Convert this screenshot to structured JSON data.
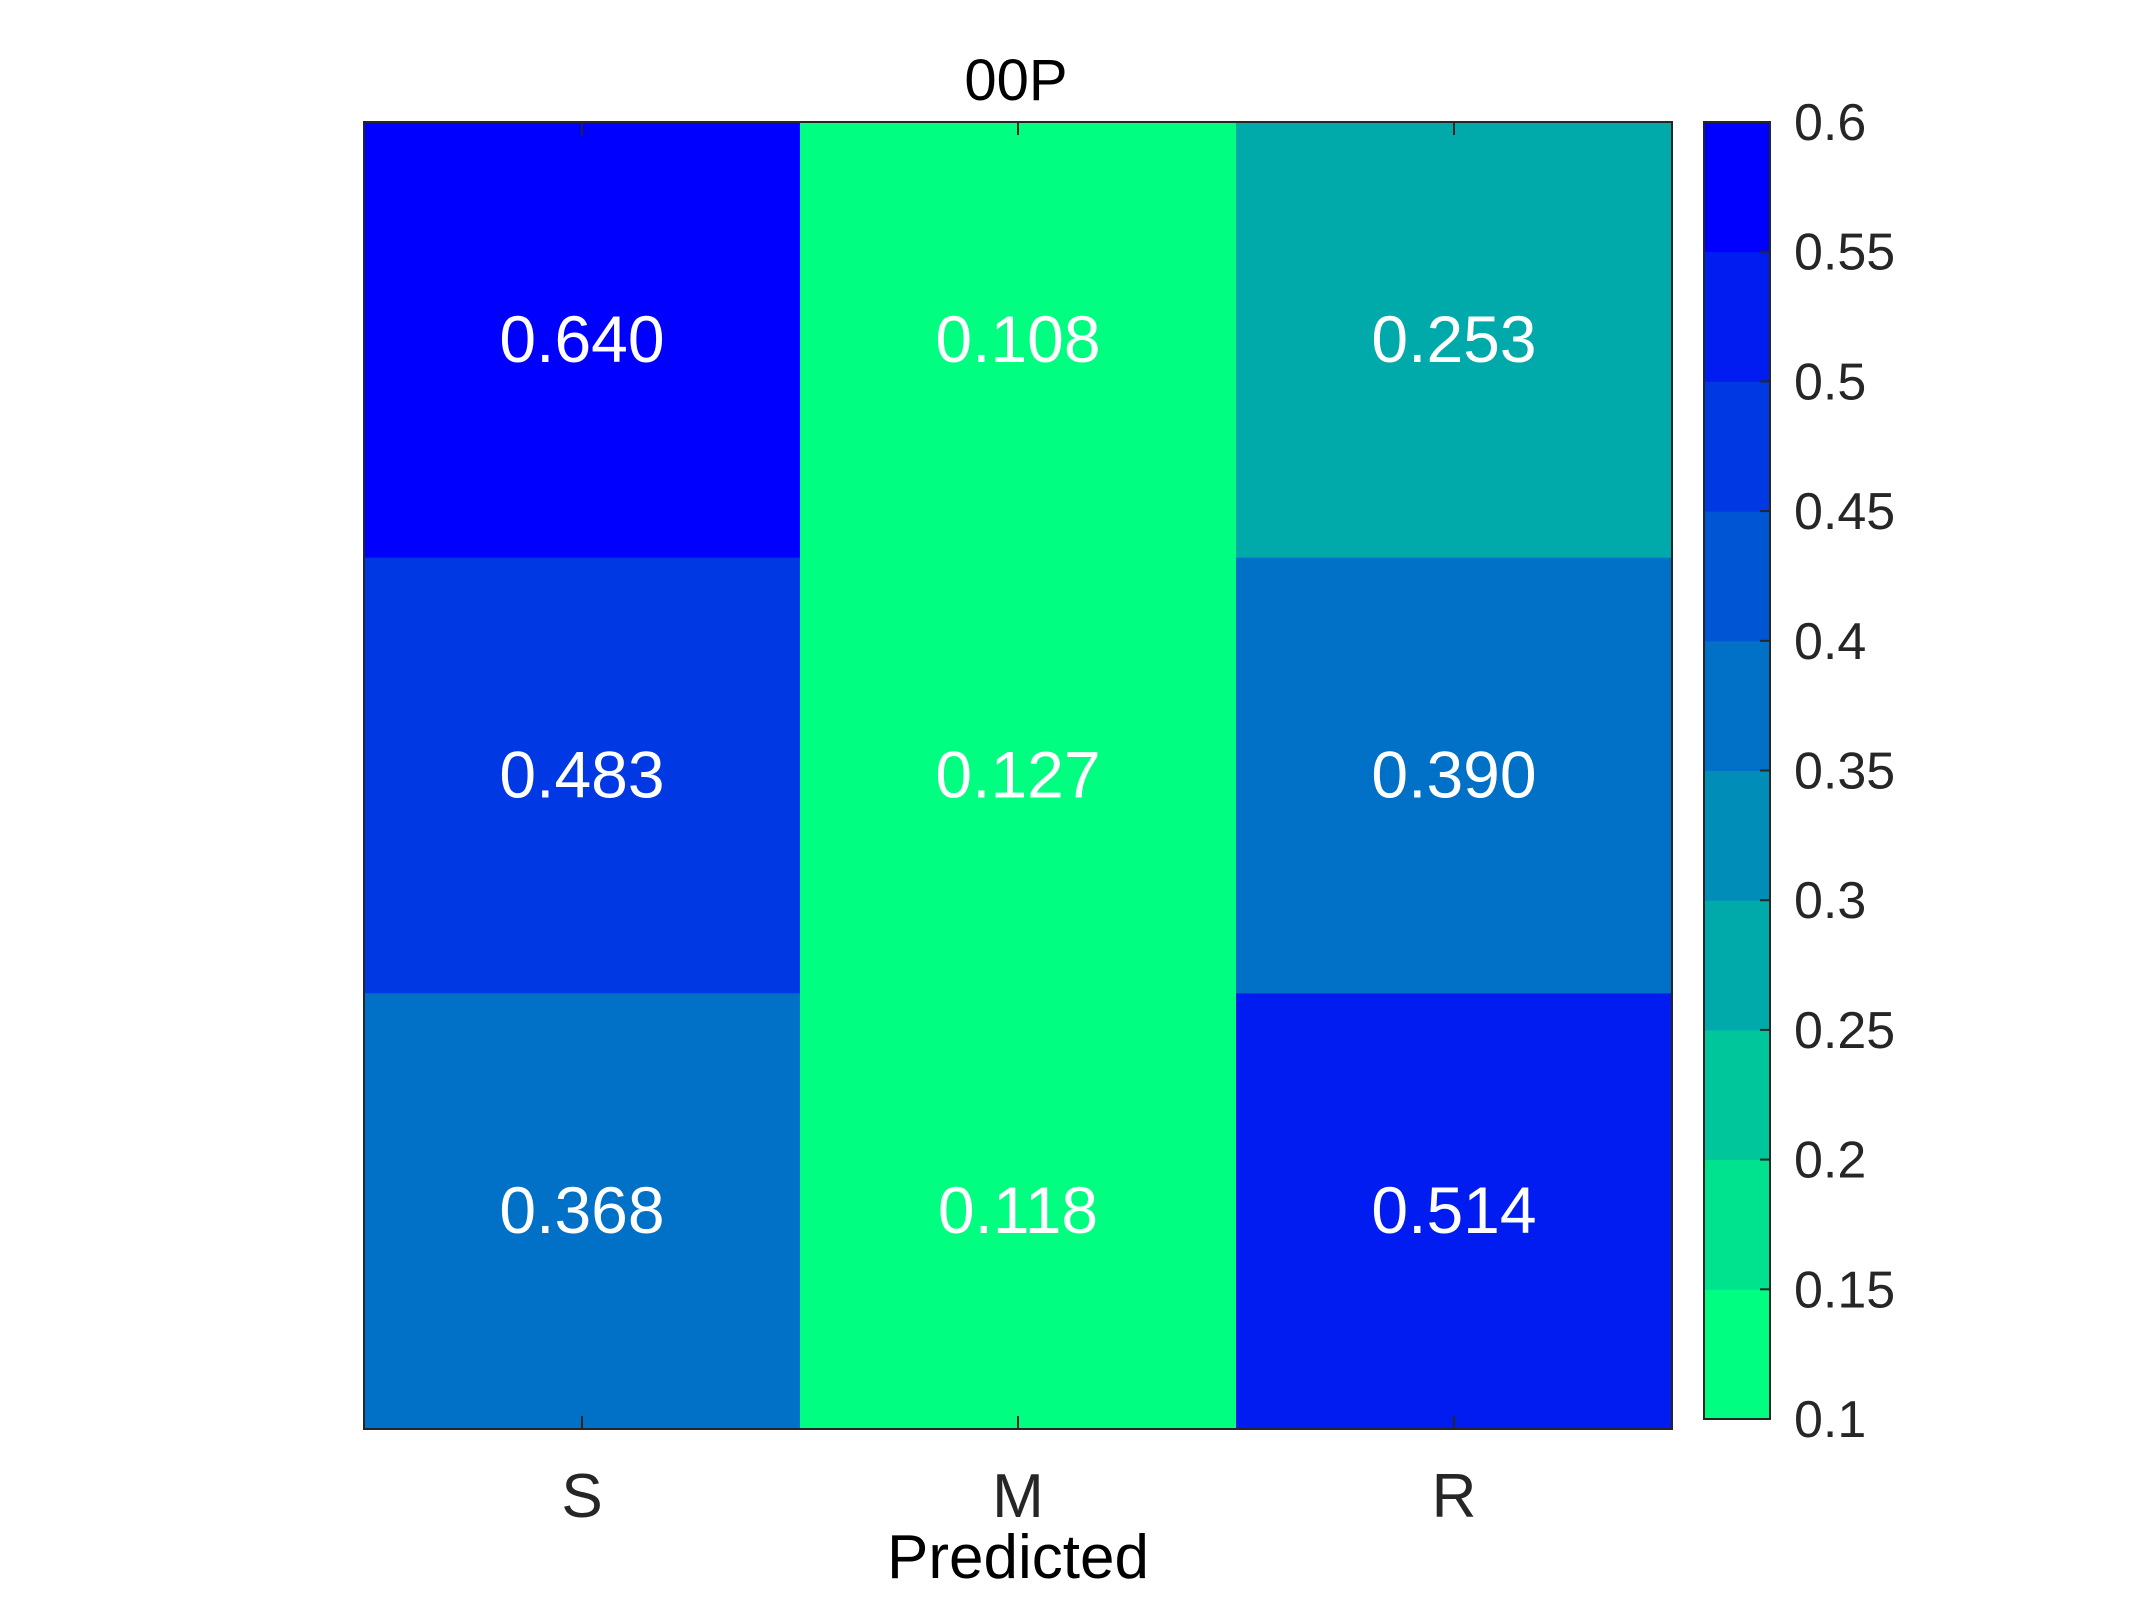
{
  "chart_data": {
    "type": "heatmap",
    "title": "00P",
    "xlabel": "Predicted",
    "ylabel": "",
    "x_categories": [
      "S",
      "M",
      "R"
    ],
    "rows": 3,
    "values": [
      [
        0.64,
        0.108,
        0.253
      ],
      [
        0.483,
        0.127,
        0.39
      ],
      [
        0.368,
        0.118,
        0.514
      ]
    ],
    "value_labels": [
      [
        "0.640",
        "0.108",
        "0.253"
      ],
      [
        "0.483",
        "0.127",
        "0.390"
      ],
      [
        "0.368",
        "0.118",
        "0.514"
      ]
    ],
    "colorbar": {
      "range": [
        0.1,
        0.6
      ],
      "ticks": [
        0.1,
        0.15,
        0.2,
        0.25,
        0.3,
        0.35,
        0.4,
        0.45,
        0.5,
        0.55,
        0.6
      ],
      "tick_labels": [
        "0.1",
        "0.15",
        "0.2",
        "0.25",
        "0.3",
        "0.35",
        "0.4",
        "0.45",
        "0.5",
        "0.55",
        "0.6"
      ],
      "levels": 10,
      "color_low": "#00ff80",
      "color_high": "#0000ff",
      "placement": "right"
    },
    "grid": false
  }
}
